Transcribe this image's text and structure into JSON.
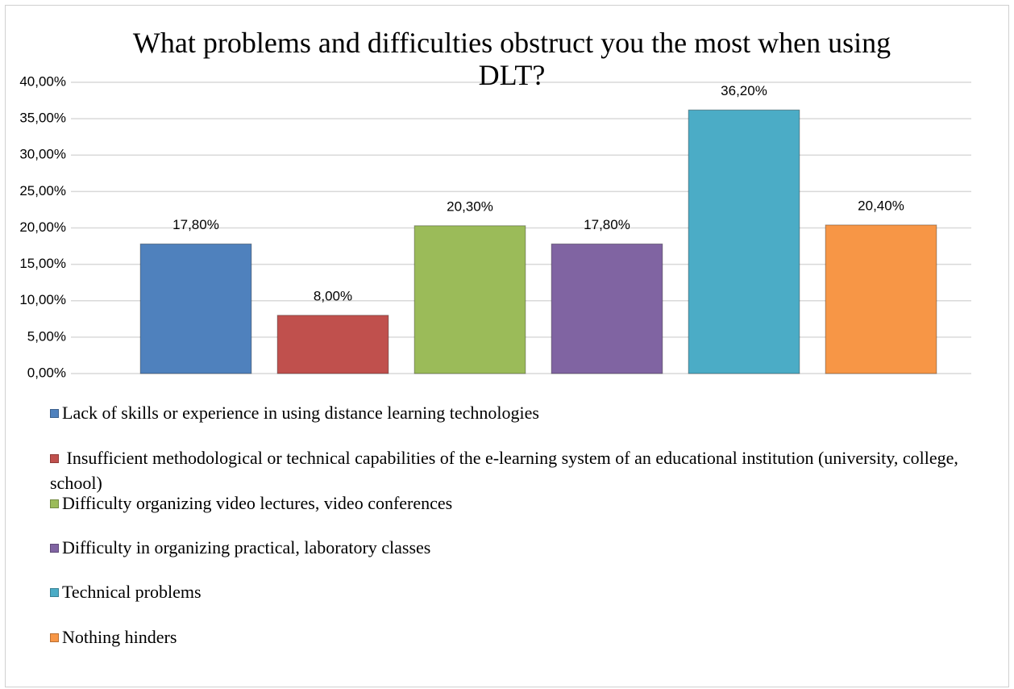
{
  "chart_data": {
    "type": "bar",
    "title": "What problems and difficulties obstruct you the most when using DLT?",
    "categories": [
      null
    ],
    "series": [
      {
        "name": "Lack of skills or experience in using distance learning technologies",
        "color": "#4f81bd",
        "values": [
          17.8
        ],
        "value_labels": [
          "17,80%"
        ]
      },
      {
        "name": " Insufficient methodological or technical capabilities of the e-learning system of an educational institution (university, college,   school)",
        "color": "#c0504d",
        "values": [
          8.0
        ],
        "value_labels": [
          "8,00%"
        ]
      },
      {
        "name": "Difficulty organizing video lectures, video conferences",
        "color": "#9bbb59",
        "values": [
          20.3
        ],
        "value_labels": [
          "20,30%"
        ]
      },
      {
        "name": "Difficulty in organizing practical, laboratory classes",
        "color": "#8064a2",
        "values": [
          17.8
        ],
        "value_labels": [
          "17,80%"
        ]
      },
      {
        "name": "Technical problems",
        "color": "#4bacc6",
        "values": [
          36.2
        ],
        "value_labels": [
          "36,20%"
        ]
      },
      {
        "name": "Nothing hinders",
        "color": "#f79646",
        "values": [
          20.4
        ],
        "value_labels": [
          "20,40%"
        ]
      }
    ],
    "ylim": [
      0,
      40
    ],
    "yticks": [
      {
        "value": 0,
        "label": "0,00%"
      },
      {
        "value": 5,
        "label": "5,00%"
      },
      {
        "value": 10,
        "label": "10,00%"
      },
      {
        "value": 15,
        "label": "15,00%"
      },
      {
        "value": 20,
        "label": "20,00%"
      },
      {
        "value": 25,
        "label": "25,00%"
      },
      {
        "value": 30,
        "label": "30,00%"
      },
      {
        "value": 35,
        "label": "35,00%"
      },
      {
        "value": 40,
        "label": "40,00%"
      }
    ],
    "grid": true,
    "legend": "bottom"
  }
}
